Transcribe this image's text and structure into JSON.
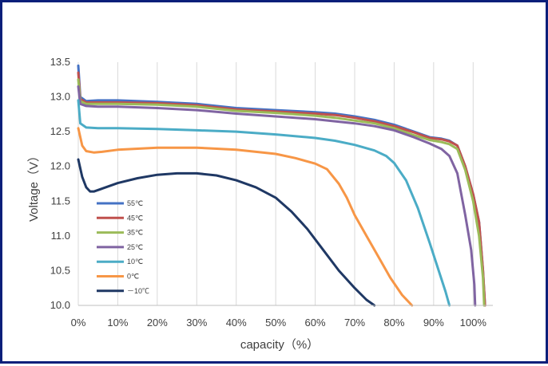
{
  "chart_data": {
    "type": "line",
    "title": "",
    "xlabel": "capacity（%）",
    "ylabel": "Voltage（V）",
    "xlim": [
      0,
      105
    ],
    "ylim": [
      10.0,
      13.5
    ],
    "x_ticks": [
      "0%",
      "10%",
      "20%",
      "30%",
      "40%",
      "50%",
      "60%",
      "70%",
      "80%",
      "90%",
      "100%"
    ],
    "y_ticks": [
      "10.0",
      "10.5",
      "11.0",
      "11.5",
      "12.0",
      "12.5",
      "13.0",
      "13.5"
    ],
    "grid": "vertical",
    "legend_position": "lower-left",
    "series": [
      {
        "name": "55℃",
        "color": "#4472C4",
        "points": [
          [
            0,
            13.45
          ],
          [
            0.5,
            13.0
          ],
          [
            2,
            12.94
          ],
          [
            5,
            12.95
          ],
          [
            10,
            12.95
          ],
          [
            20,
            12.93
          ],
          [
            30,
            12.9
          ],
          [
            40,
            12.84
          ],
          [
            50,
            12.81
          ],
          [
            60,
            12.78
          ],
          [
            65,
            12.76
          ],
          [
            70,
            12.72
          ],
          [
            75,
            12.67
          ],
          [
            80,
            12.6
          ],
          [
            85,
            12.5
          ],
          [
            89,
            12.42
          ],
          [
            92,
            12.4
          ],
          [
            94,
            12.37
          ],
          [
            96,
            12.3
          ],
          [
            98,
            12.0
          ],
          [
            100,
            11.6
          ],
          [
            101.5,
            11.2
          ],
          [
            102.5,
            10.5
          ],
          [
            103,
            10.0
          ]
        ]
      },
      {
        "name": "45℃",
        "color": "#C0504D",
        "points": [
          [
            0,
            13.35
          ],
          [
            0.5,
            12.97
          ],
          [
            2,
            12.92
          ],
          [
            5,
            12.92
          ],
          [
            10,
            12.92
          ],
          [
            20,
            12.91
          ],
          [
            30,
            12.88
          ],
          [
            40,
            12.82
          ],
          [
            50,
            12.79
          ],
          [
            60,
            12.76
          ],
          [
            65,
            12.74
          ],
          [
            70,
            12.7
          ],
          [
            75,
            12.65
          ],
          [
            80,
            12.58
          ],
          [
            85,
            12.49
          ],
          [
            89,
            12.41
          ],
          [
            92,
            12.39
          ],
          [
            94,
            12.36
          ],
          [
            96,
            12.3
          ],
          [
            98,
            12.0
          ],
          [
            100,
            11.6
          ],
          [
            101.5,
            11.2
          ],
          [
            102.5,
            10.5
          ],
          [
            103,
            10.0
          ]
        ]
      },
      {
        "name": "35℃",
        "color": "#9BBB59",
        "points": [
          [
            0,
            13.25
          ],
          [
            0.5,
            12.94
          ],
          [
            2,
            12.9
          ],
          [
            5,
            12.9
          ],
          [
            10,
            12.9
          ],
          [
            20,
            12.89
          ],
          [
            30,
            12.86
          ],
          [
            40,
            12.8
          ],
          [
            50,
            12.77
          ],
          [
            60,
            12.73
          ],
          [
            65,
            12.7
          ],
          [
            70,
            12.66
          ],
          [
            75,
            12.62
          ],
          [
            80,
            12.55
          ],
          [
            85,
            12.45
          ],
          [
            89,
            12.38
          ],
          [
            92,
            12.35
          ],
          [
            94,
            12.32
          ],
          [
            96,
            12.25
          ],
          [
            98,
            11.95
          ],
          [
            100,
            11.5
          ],
          [
            101.5,
            11.0
          ],
          [
            102.5,
            10.4
          ],
          [
            102.8,
            10.0
          ]
        ]
      },
      {
        "name": "25℃",
        "color": "#8064A2",
        "points": [
          [
            0,
            13.15
          ],
          [
            0.5,
            12.9
          ],
          [
            2,
            12.87
          ],
          [
            5,
            12.86
          ],
          [
            10,
            12.86
          ],
          [
            20,
            12.84
          ],
          [
            30,
            12.81
          ],
          [
            40,
            12.76
          ],
          [
            50,
            12.72
          ],
          [
            60,
            12.68
          ],
          [
            65,
            12.65
          ],
          [
            70,
            12.62
          ],
          [
            75,
            12.58
          ],
          [
            80,
            12.52
          ],
          [
            85,
            12.42
          ],
          [
            89,
            12.33
          ],
          [
            92,
            12.25
          ],
          [
            94,
            12.15
          ],
          [
            96,
            11.9
          ],
          [
            98,
            11.3
          ],
          [
            99.5,
            10.8
          ],
          [
            100.3,
            10.3
          ],
          [
            100.5,
            10.0
          ]
        ]
      },
      {
        "name": "10℃",
        "color": "#4BACC6",
        "points": [
          [
            0,
            12.95
          ],
          [
            0.5,
            12.62
          ],
          [
            2,
            12.56
          ],
          [
            5,
            12.55
          ],
          [
            10,
            12.55
          ],
          [
            20,
            12.54
          ],
          [
            30,
            12.52
          ],
          [
            40,
            12.5
          ],
          [
            50,
            12.46
          ],
          [
            60,
            12.41
          ],
          [
            65,
            12.37
          ],
          [
            70,
            12.31
          ],
          [
            75,
            12.23
          ],
          [
            78,
            12.15
          ],
          [
            80,
            12.05
          ],
          [
            83,
            11.8
          ],
          [
            86,
            11.4
          ],
          [
            89,
            10.9
          ],
          [
            91,
            10.55
          ],
          [
            93,
            10.2
          ],
          [
            94,
            10.0
          ]
        ]
      },
      {
        "name": "0℃",
        "color": "#F79646",
        "points": [
          [
            0,
            12.55
          ],
          [
            1,
            12.3
          ],
          [
            2,
            12.22
          ],
          [
            4,
            12.2
          ],
          [
            6,
            12.21
          ],
          [
            10,
            12.24
          ],
          [
            20,
            12.27
          ],
          [
            30,
            12.27
          ],
          [
            40,
            12.24
          ],
          [
            50,
            12.18
          ],
          [
            55,
            12.12
          ],
          [
            60,
            12.04
          ],
          [
            63,
            11.96
          ],
          [
            66,
            11.75
          ],
          [
            68,
            11.55
          ],
          [
            70,
            11.3
          ],
          [
            73,
            11.0
          ],
          [
            76,
            10.7
          ],
          [
            79,
            10.4
          ],
          [
            82,
            10.15
          ],
          [
            84.5,
            10.0
          ]
        ]
      },
      {
        "name": "－10℃",
        "color": "#1F3864",
        "points": [
          [
            0,
            12.1
          ],
          [
            1,
            11.85
          ],
          [
            2,
            11.7
          ],
          [
            3,
            11.64
          ],
          [
            4,
            11.64
          ],
          [
            6,
            11.68
          ],
          [
            10,
            11.76
          ],
          [
            15,
            11.83
          ],
          [
            20,
            11.88
          ],
          [
            25,
            11.9
          ],
          [
            30,
            11.9
          ],
          [
            35,
            11.87
          ],
          [
            40,
            11.8
          ],
          [
            45,
            11.7
          ],
          [
            50,
            11.55
          ],
          [
            54,
            11.35
          ],
          [
            58,
            11.1
          ],
          [
            62,
            10.8
          ],
          [
            66,
            10.5
          ],
          [
            70,
            10.25
          ],
          [
            73,
            10.08
          ],
          [
            75,
            10.0
          ]
        ]
      }
    ]
  }
}
